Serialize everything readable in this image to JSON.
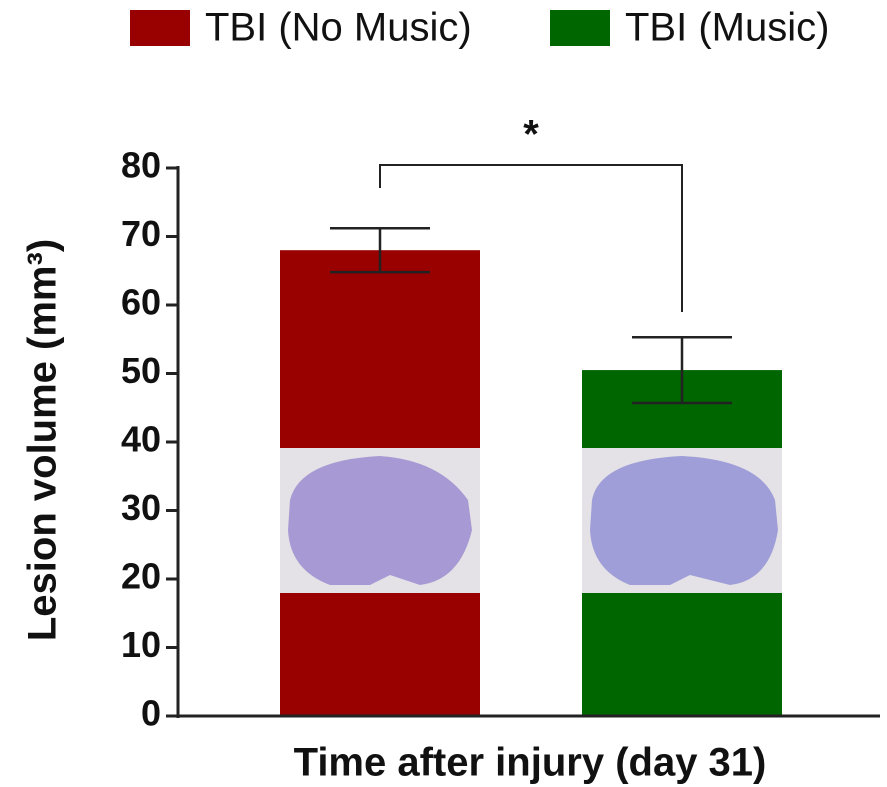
{
  "chart_data": {
    "type": "bar",
    "x_label": "Time after injury (day 31)",
    "y_label": "Lesion volume (mm³)",
    "annotation": "*",
    "categories": [
      null
    ],
    "series": [
      {
        "name": "TBI (No Music)",
        "color": "#990000",
        "values": [
          68
        ],
        "errors": [
          3.2
        ]
      },
      {
        "name": "TBI (Music)",
        "color": "#006600",
        "values": [
          50.5
        ],
        "errors": [
          4.8
        ]
      }
    ],
    "ylim": [
      0,
      80
    ],
    "yticks": [
      0,
      10,
      20,
      30,
      40,
      50,
      60,
      70,
      80
    ]
  }
}
